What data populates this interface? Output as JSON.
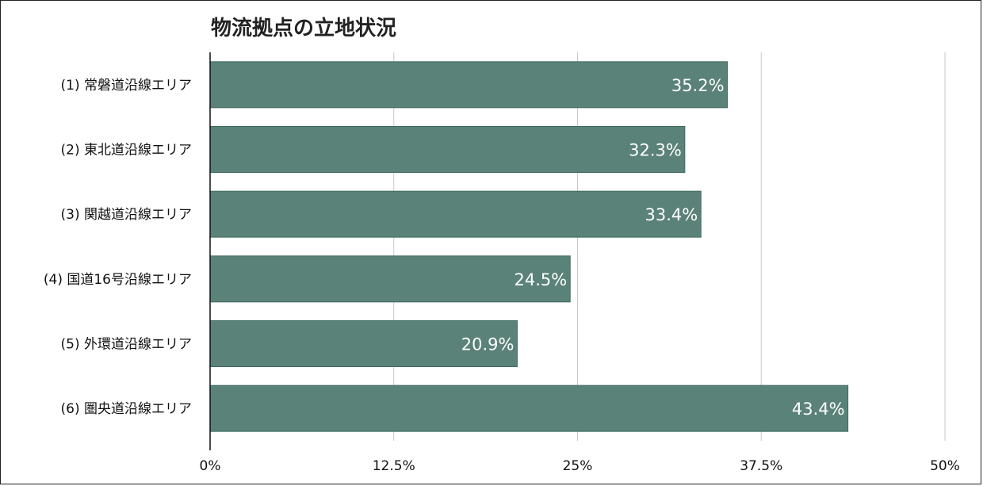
{
  "chart_data": {
    "type": "bar",
    "orientation": "horizontal",
    "title": "物流拠点の立地状況",
    "categories": [
      "(1) 常磐道沿線エリア",
      "(2) 東北道沿線エリア",
      "(3) 関越道沿線エリア",
      "(4) 国道16号沿線エリア",
      "(5) 外環道沿線エリア",
      "(6) 圏央道沿線エリア"
    ],
    "values": [
      35.2,
      32.3,
      33.4,
      24.5,
      20.9,
      43.4
    ],
    "value_labels": [
      "35.2%",
      "32.3%",
      "33.4%",
      "24.5%",
      "20.9%",
      "43.4%"
    ],
    "xlim": [
      0,
      50
    ],
    "xticks": [
      0,
      12.5,
      25,
      37.5,
      50
    ],
    "xtick_labels": [
      "0%",
      "12.5%",
      "25%",
      "37.5%",
      "50%"
    ],
    "xlabel": "",
    "ylabel": "",
    "grid": "vertical",
    "bar_color": "#5a8278",
    "grid_color": "#c8c8c8"
  }
}
